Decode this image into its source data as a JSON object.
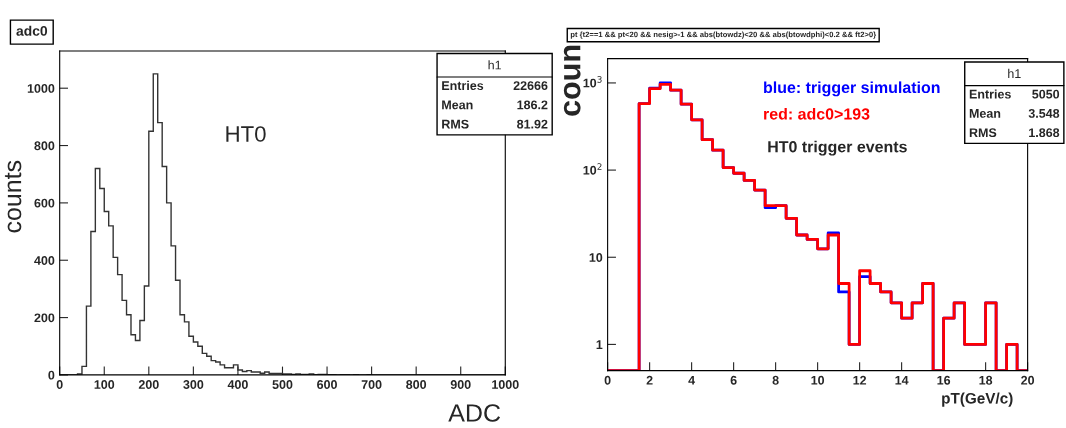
{
  "chart_data": [
    {
      "type": "histogram",
      "title": "adc0",
      "xlabel": "ADC",
      "ylabel": "counts",
      "annotations": [
        "HT0",
        "h1",
        "Entries",
        "22666",
        "Mean",
        "186.2",
        "RMS",
        "81.92"
      ],
      "bins": [
        0,
        10,
        20,
        30,
        40,
        50,
        60,
        70,
        80,
        90,
        100,
        110,
        120,
        130,
        140,
        150,
        160,
        170,
        180,
        190,
        200,
        210,
        220,
        230,
        240,
        250,
        260,
        270,
        280,
        290,
        300,
        310,
        320,
        330,
        340,
        350,
        360,
        370,
        380,
        390,
        400,
        410,
        420,
        430,
        440,
        450,
        460,
        470,
        480,
        490,
        500,
        510,
        520,
        530,
        540,
        550,
        560,
        570,
        580,
        590,
        600,
        610,
        620,
        630,
        640,
        650,
        660,
        670,
        680,
        690,
        700,
        710,
        720,
        730,
        740,
        750,
        760,
        770,
        780,
        790,
        800,
        810,
        820,
        830,
        840,
        850,
        860,
        870,
        880,
        890,
        900,
        910,
        920,
        930,
        940,
        950,
        960,
        970,
        980,
        990,
        1000
      ],
      "values": [
        0,
        0,
        0,
        0,
        3,
        30,
        240,
        500,
        720,
        650,
        570,
        520,
        410,
        350,
        260,
        210,
        140,
        120,
        190,
        310,
        850,
        1050,
        880,
        727,
        600,
        450,
        330,
        210,
        185,
        135,
        115,
        100,
        75,
        65,
        50,
        45,
        35,
        25,
        25,
        35,
        17,
        12,
        15,
        10,
        10,
        6,
        10,
        5,
        5,
        5,
        3,
        3,
        2,
        3,
        2,
        2,
        3,
        1,
        2,
        2,
        1,
        1,
        0,
        1,
        1,
        0,
        1,
        0,
        0,
        1,
        0,
        0,
        0,
        0,
        0,
        0,
        0,
        0,
        0,
        0,
        0,
        0,
        0,
        0,
        0,
        0,
        0,
        0,
        0,
        0,
        0,
        0,
        0,
        0,
        0,
        0,
        0,
        0,
        0,
        0
      ],
      "color": "#333333",
      "xlim": [
        0,
        1000
      ],
      "ylim": [
        0,
        1130
      ],
      "xticks": [
        0,
        100,
        200,
        300,
        400,
        500,
        600,
        700,
        800,
        900,
        1000
      ],
      "yticks": [
        0,
        200,
        400,
        600,
        800,
        1000
      ],
      "grid": false
    },
    {
      "type": "histogram",
      "title": "pt {t2==1 && pt<20 && nesig>-1 && abs(btowdz)<20 && abs(btowdphi)<0.2 && ft2>0}",
      "xlabel": "pT(GeV/c)",
      "ylabel": "coun",
      "annotations": [
        "blue: trigger simulation",
        "red: adc0>193",
        "HT0 trigger events",
        "h1",
        "Entries",
        "5050",
        "Mean",
        "3.548",
        "RMS",
        "1.868"
      ],
      "bins": [
        0,
        0.5,
        1,
        1.5,
        2,
        2.5,
        3,
        3.5,
        4,
        4.5,
        5,
        5.5,
        6,
        6.5,
        7,
        7.5,
        8,
        8.5,
        9,
        9.5,
        10,
        10.5,
        11,
        11.5,
        12,
        12.5,
        13,
        13.5,
        14,
        14.5,
        15,
        15.5,
        16,
        16.5,
        17,
        17.5,
        18,
        18.5,
        19,
        19.5,
        20
      ],
      "series": [
        {
          "color": "#0000ff",
          "values": [
            null,
            null,
            null,
            580,
            870,
            1000,
            825,
            570,
            377,
            223,
            169,
            107,
            92,
            76,
            59,
            37,
            39,
            28,
            18,
            16,
            12.5,
            19,
            4,
            1,
            6,
            5,
            4,
            3,
            2,
            3,
            5,
            null,
            2,
            3,
            1,
            1,
            3,
            null,
            1,
            null
          ]
        },
        {
          "color": "#ff0000",
          "values": [
            null,
            null,
            null,
            580,
            860,
            965,
            825,
            570,
            377,
            223,
            169,
            107,
            92,
            76,
            59,
            39,
            39,
            28,
            18,
            16,
            12.5,
            18,
            5,
            1,
            7,
            5,
            4,
            3,
            2,
            3,
            5,
            null,
            2,
            3,
            1,
            1,
            3,
            null,
            1,
            null
          ]
        }
      ],
      "log": "y",
      "xlim": [
        0,
        20
      ],
      "ylim": [
        0.5,
        1900
      ],
      "xticks": [
        0,
        2,
        4,
        6,
        8,
        10,
        12,
        14,
        16,
        18,
        20
      ],
      "yticks": [
        1,
        10,
        {
          "value": 100,
          "label": "10$^{2}$"
        },
        {
          "value": 1000,
          "label": "10$^{3}$"
        }
      ],
      "grid": false
    }
  ]
}
